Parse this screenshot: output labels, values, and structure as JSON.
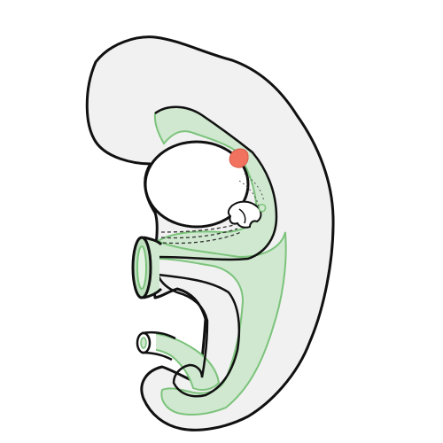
{
  "diagram": {
    "colors": {
      "background": "#ffffff",
      "body_fill": "#f1f1f1",
      "outline": "#111111",
      "tissue_fill": "#cfe8cf",
      "tissue_edge": "#7cc37c",
      "lumen_fill": "#ffffff",
      "accent": "#f1735f",
      "dash": "#333333"
    },
    "parts": [
      "outer-body",
      "green-tissue",
      "large-cavity",
      "small-branch-structure",
      "upper-tube-opening",
      "lower-tube-opening",
      "red-spot",
      "dashed-lines"
    ]
  }
}
